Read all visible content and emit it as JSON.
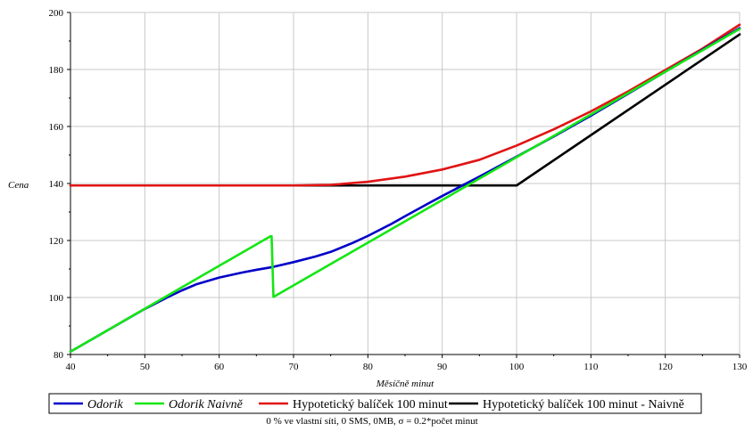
{
  "chart_data": {
    "type": "line",
    "title": "",
    "xlabel": "Měsíčně minut",
    "ylabel": "Cena",
    "xlim": [
      40,
      130
    ],
    "ylim": [
      80,
      200
    ],
    "xticks": [
      40,
      50,
      60,
      70,
      80,
      90,
      100,
      110,
      120,
      130
    ],
    "yticks": [
      80,
      100,
      120,
      140,
      160,
      180,
      200
    ],
    "grid": true,
    "legend_position": "bottom",
    "caption": "0 % ve vlastní síti, 0 SMS, 0MB,  σ = 0.2*počet minut",
    "series": [
      {
        "name": "Odorik",
        "color": "#0000c8",
        "italic": true,
        "x": [
          40,
          45,
          50,
          53,
          55,
          57,
          60,
          63,
          65,
          67,
          70,
          73,
          75,
          78,
          80,
          83,
          85,
          88,
          90,
          93,
          95,
          100,
          105,
          110,
          115,
          120,
          125,
          130
        ],
        "y": [
          81,
          88.5,
          96,
          100,
          102.5,
          104.7,
          107,
          108.7,
          109.7,
          110.6,
          112.4,
          114.4,
          116,
          119.2,
          121.6,
          125.6,
          128.5,
          132.8,
          135.6,
          139.7,
          142.4,
          149.4,
          156.5,
          163.8,
          171.5,
          179.2,
          186.9,
          194.5
        ]
      },
      {
        "name": "Odorik Naivně",
        "color": "#14e614",
        "italic": true,
        "x": [
          40,
          66.9,
          67.05,
          67.3,
          100,
          130
        ],
        "y": [
          81,
          121.5,
          121.5,
          100.2,
          149.2,
          194.2
        ]
      },
      {
        "name": "Hypotetický balíček 100 minut",
        "color": "#e01414",
        "italic": false,
        "x": [
          40,
          70,
          75,
          80,
          85,
          90,
          95,
          100,
          105,
          110,
          115,
          120,
          125,
          130
        ],
        "y": [
          139.3,
          139.3,
          139.5,
          140.6,
          142.4,
          144.9,
          148.3,
          153.3,
          159,
          165.3,
          172.3,
          179.8,
          187.3,
          195.7
        ]
      },
      {
        "name": "Hypotetický balíček 100 minut - Naivně",
        "color": "#000000",
        "italic": false,
        "x": [
          40,
          100,
          130
        ],
        "y": [
          139.3,
          139.3,
          192.3
        ]
      }
    ]
  }
}
